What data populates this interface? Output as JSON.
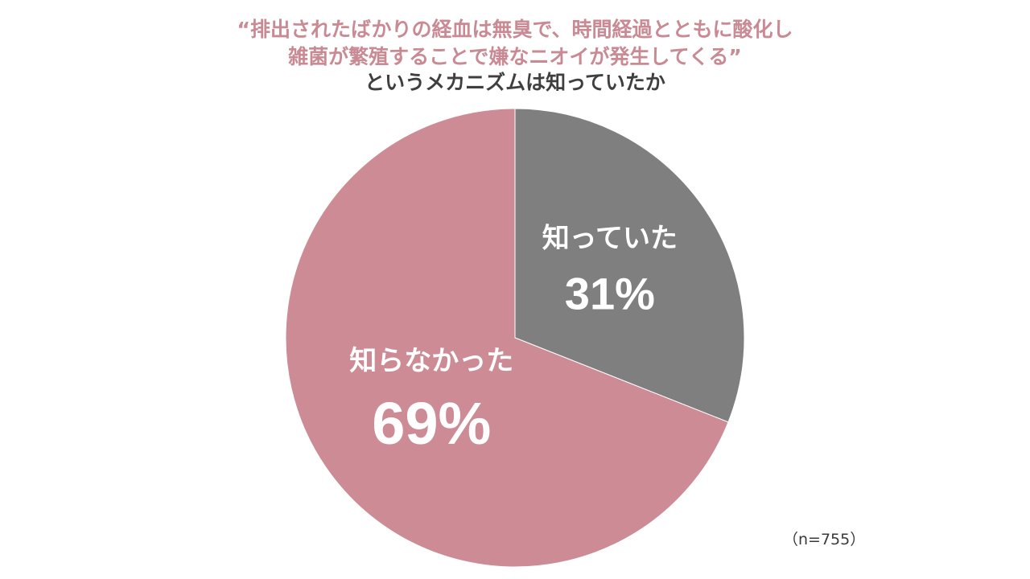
{
  "colors": {
    "accent": "#c98a94",
    "dark_text": "#3f3f3f",
    "slice_known": "#7f7f7f",
    "slice_unknown": "#cc8b95",
    "label_text": "#ffffff"
  },
  "title": {
    "line1": "“排出されたばかりの経血は無臭で、時間経過とともに酸化し",
    "line2": "雑菌が繁殖することで嫌なニオイが発生してくる”",
    "line3": "というメカニズムは知っていたか"
  },
  "sample_size": "（n=755）",
  "chart_data": {
    "type": "pie",
    "title": "“排出されたばかりの経血は無臭で、時間経過とともに酸化し雑菌が繁殖することで嫌なニオイが発生してくる”というメカニズムは知っていたか",
    "slices": [
      {
        "label": "知っていた",
        "value": 31,
        "value_label": "31%",
        "color": "#7f7f7f"
      },
      {
        "label": "知らなかった",
        "value": 69,
        "value_label": "69%",
        "color": "#cc8b95"
      }
    ],
    "start": "12 o'clock",
    "direction": "clockwise",
    "legend": "none",
    "data_labels": "inside"
  }
}
